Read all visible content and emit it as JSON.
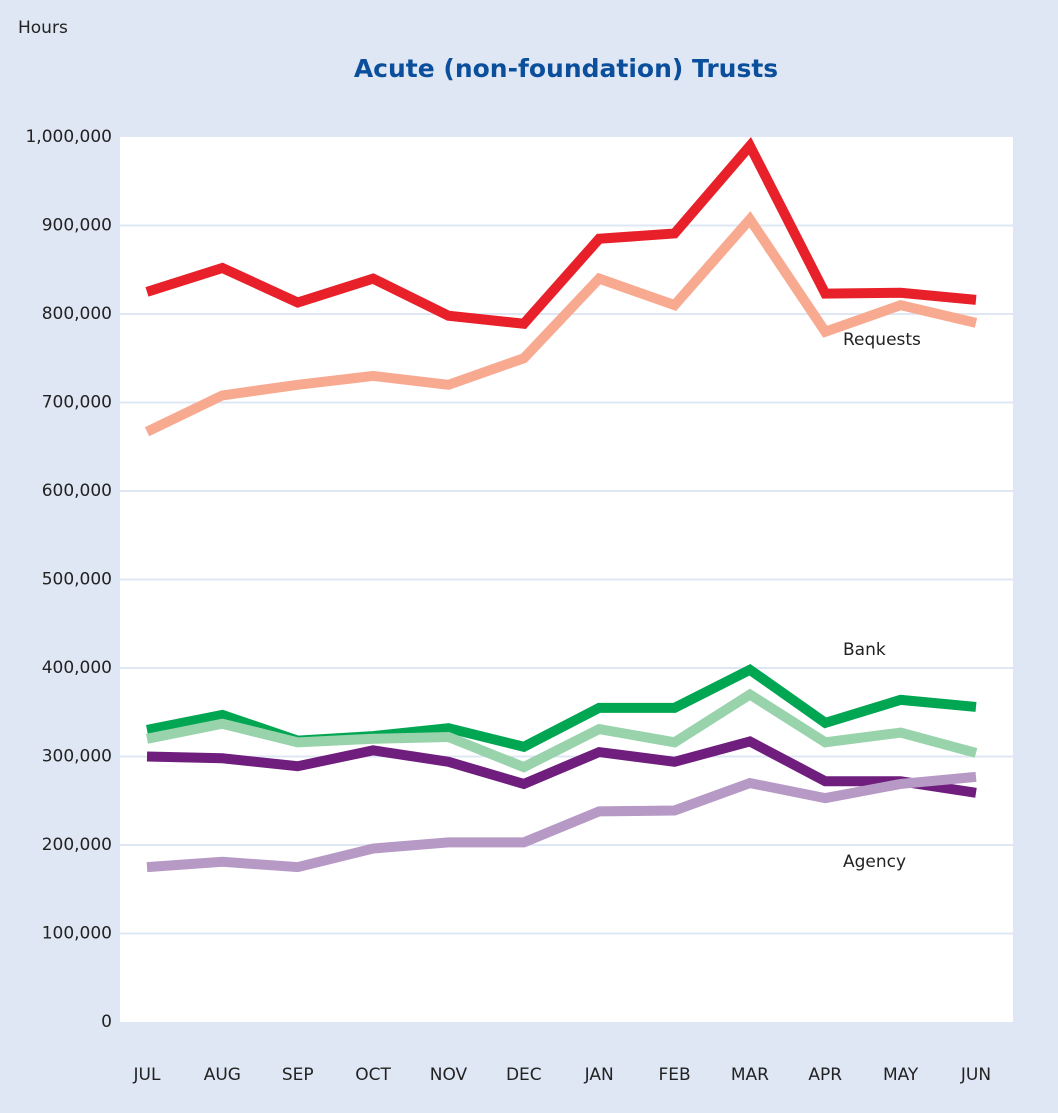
{
  "chart_data": {
    "type": "line",
    "title": "Acute (non-foundation) Trusts",
    "y_label": "Hours",
    "categories": [
      "JUL",
      "AUG",
      "SEP",
      "OCT",
      "NOV",
      "DEC",
      "JAN",
      "FEB",
      "MAR",
      "APR",
      "MAY",
      "JUN"
    ],
    "series": [
      {
        "color": "#e8202a",
        "values": [
          825000,
          852000,
          813000,
          840000,
          798000,
          789000,
          885000,
          891000,
          990000,
          823000,
          824000,
          816000
        ]
      },
      {
        "color": "#f8aa90",
        "values": [
          667000,
          708000,
          720000,
          730000,
          720000,
          750000,
          840000,
          810000,
          907000,
          780000,
          810000,
          790000
        ]
      },
      {
        "color": "#00a651",
        "values": [
          330000,
          347000,
          318000,
          323000,
          332000,
          311000,
          355000,
          355000,
          398000,
          338000,
          364000,
          356000
        ]
      },
      {
        "color": "#98d3ab",
        "values": [
          320000,
          337000,
          316000,
          320000,
          322000,
          288000,
          331000,
          316000,
          370000,
          316000,
          327000,
          304000
        ]
      },
      {
        "color": "#6f1e7e",
        "values": [
          300000,
          298000,
          289000,
          307000,
          294000,
          269000,
          305000,
          294000,
          317000,
          272000,
          272000,
          259000
        ]
      },
      {
        "color": "#b699c4",
        "values": [
          175000,
          181000,
          175000,
          196000,
          203000,
          203000,
          238000,
          239000,
          270000,
          253000,
          269000,
          277000
        ]
      }
    ],
    "annotations": [
      "Requests",
      "Bank",
      "Agency"
    ],
    "ylim": [
      0,
      1000000
    ],
    "yticks": [
      0,
      {
        "value": 100000,
        "label": "100,000"
      },
      {
        "value": 200000,
        "label": "200,000"
      },
      {
        "value": 300000,
        "label": "300,000"
      },
      {
        "value": 400000,
        "label": "400,000"
      },
      {
        "value": 500000,
        "label": "500,000"
      },
      {
        "value": 600000,
        "label": "600,000"
      },
      {
        "value": 700000,
        "label": "700,000"
      },
      {
        "value": 800000,
        "label": "800,000"
      },
      {
        "value": 900000,
        "label": "900,000"
      },
      {
        "value": 1000000,
        "label": "1,000,000"
      }
    ],
    "grid": true
  }
}
